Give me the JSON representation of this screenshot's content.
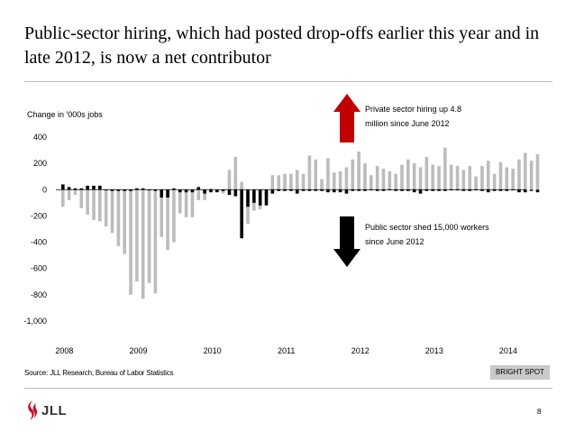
{
  "slide": {
    "title": "Public-sector hiring, which had posted drop-offs earlier this year and in late 2012, is now a net contributor",
    "source": "Source: JLL Research, Bureau of Labor Statistics",
    "badge": "BRIGHT SPOT",
    "logo": "JLL",
    "page_number": "8"
  },
  "colors": {
    "total": "#bcbcbc",
    "public": "#000000",
    "up_arrow": "#c00000",
    "down_arrow": "#000000",
    "logo": "#c8102e"
  },
  "chart_data": {
    "type": "bar",
    "ylabel": "Change in '000s jobs",
    "ylim": [
      -1000,
      400
    ],
    "yticks": [
      400,
      200,
      0,
      -200,
      -400,
      -600,
      -800,
      -1000
    ],
    "ytick_labels": [
      "400",
      "200",
      "0",
      "-200",
      "-400",
      "-600",
      "-800",
      "-1,000"
    ],
    "x_start": "2008-01",
    "xtick_labels": [
      "2008",
      "2009",
      "2010",
      "2011",
      "2012",
      "2013",
      "2014"
    ],
    "grid": false,
    "legend": "none",
    "series": [
      {
        "values": [
          -130,
          -80,
          -40,
          -140,
          -190,
          -230,
          -240,
          -280,
          -330,
          -430,
          -490,
          -800,
          -700,
          -830,
          -710,
          -790,
          -360,
          -460,
          -400,
          -180,
          -210,
          -210,
          -80,
          -80,
          10,
          -20,
          -30,
          150,
          250,
          60,
          -260,
          -160,
          -150,
          -70,
          110,
          110,
          120,
          120,
          150,
          120,
          260,
          230,
          80,
          240,
          130,
          140,
          170,
          230,
          290,
          200,
          110,
          180,
          160,
          140,
          120,
          190,
          230,
          200,
          170,
          250,
          190,
          180,
          320,
          190,
          180,
          150,
          180,
          100,
          180,
          220,
          120,
          210,
          170,
          160,
          230,
          280,
          220,
          270
        ]
      },
      {
        "values": [
          40,
          20,
          10,
          10,
          30,
          30,
          30,
          0,
          -10,
          -10,
          -10,
          -10,
          10,
          10,
          0,
          -10,
          -60,
          -60,
          10,
          -20,
          -20,
          -20,
          20,
          -30,
          -20,
          -20,
          -10,
          -40,
          -50,
          -370,
          -130,
          -100,
          -120,
          -120,
          -30,
          -10,
          -10,
          -10,
          -30,
          -10,
          -10,
          -10,
          -10,
          -20,
          -20,
          -20,
          -30,
          -10,
          -10,
          -10,
          0,
          -10,
          -10,
          0,
          -10,
          -10,
          -10,
          -20,
          -30,
          -10,
          -10,
          -10,
          -10,
          0,
          0,
          -10,
          -10,
          0,
          -10,
          -20,
          -10,
          -10,
          -10,
          0,
          -20,
          -20,
          -10,
          -20
        ]
      }
    ],
    "annotations": {
      "up": "Private sector hiring up 4.8 million since June 2012",
      "down": "Public sector shed 15,000 workers since June 2012"
    }
  }
}
